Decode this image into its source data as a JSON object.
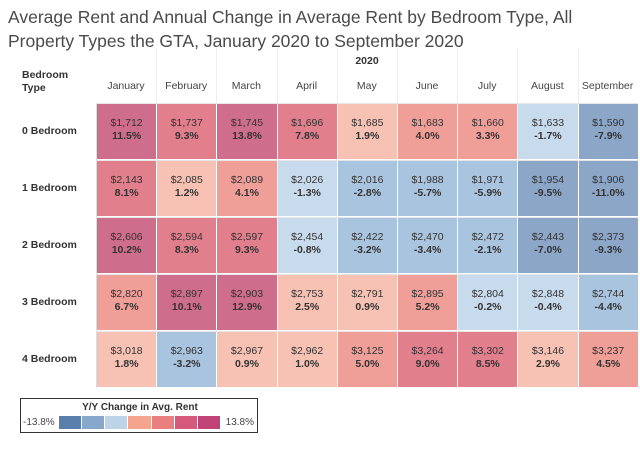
{
  "chart_data": {
    "type": "heatmap",
    "title": "Average Rent and Annual Change in Average Rent by Bedroom Type, All Property Types the GTA, January 2020 to September 2020",
    "year_label": "2020",
    "row_header": "Bedroom Type",
    "columns": [
      "January",
      "February",
      "March",
      "April",
      "May",
      "June",
      "July",
      "August",
      "September"
    ],
    "rows": [
      {
        "label": "0 Bedroom",
        "rents": [
          "$1,712",
          "$1,737",
          "$1,745",
          "$1,696",
          "$1,685",
          "$1,683",
          "$1,660",
          "$1,633",
          "$1,590"
        ],
        "changes": [
          "11.5%",
          "9.3%",
          "13.8%",
          "7.8%",
          "1.9%",
          "4.0%",
          "3.3%",
          "-1.7%",
          "-7.9%"
        ],
        "change_values": [
          11.5,
          9.3,
          13.8,
          7.8,
          1.9,
          4.0,
          3.3,
          -1.7,
          -7.9
        ]
      },
      {
        "label": "1 Bedroom",
        "rents": [
          "$2,143",
          "$2,085",
          "$2,089",
          "$2,026",
          "$2,016",
          "$1,988",
          "$1,971",
          "$1,954",
          "$1,906"
        ],
        "changes": [
          "8.1%",
          "1.2%",
          "4.1%",
          "-1.3%",
          "-2.8%",
          "-5.7%",
          "-5.9%",
          "-9.5%",
          "-11.0%"
        ],
        "change_values": [
          8.1,
          1.2,
          4.1,
          -1.3,
          -2.8,
          -5.7,
          -5.9,
          -9.5,
          -11.0
        ]
      },
      {
        "label": "2 Bedroom",
        "rents": [
          "$2,606",
          "$2,594",
          "$2,597",
          "$2,454",
          "$2,422",
          "$2,470",
          "$2,472",
          "$2,443",
          "$2,373"
        ],
        "changes": [
          "10.2%",
          "8.3%",
          "9.3%",
          "-0.8%",
          "-3.2%",
          "-3.4%",
          "-2.1%",
          "-7.0%",
          "-9.3%"
        ],
        "change_values": [
          10.2,
          8.3,
          9.3,
          -0.8,
          -3.2,
          -3.4,
          -2.1,
          -7.0,
          -9.3
        ]
      },
      {
        "label": "3 Bedroom",
        "rents": [
          "$2,820",
          "$2,897",
          "$2,903",
          "$2,753",
          "$2,791",
          "$2,895",
          "$2,804",
          "$2,848",
          "$2,744"
        ],
        "changes": [
          "6.7%",
          "10.1%",
          "12.9%",
          "2.5%",
          "0.9%",
          "5.2%",
          "-0.2%",
          "-0.4%",
          "-4.4%"
        ],
        "change_values": [
          6.7,
          10.1,
          12.9,
          2.5,
          0.9,
          5.2,
          -0.2,
          -0.4,
          -4.4
        ]
      },
      {
        "label": "4 Bedroom",
        "rents": [
          "$3,018",
          "$2,963",
          "$2,967",
          "$2,962",
          "$3,125",
          "$3,264",
          "$3,302",
          "$3,146",
          "$3,237"
        ],
        "changes": [
          "1.8%",
          "-3.2%",
          "0.9%",
          "1.0%",
          "5.0%",
          "9.0%",
          "8.5%",
          "2.9%",
          "4.5%"
        ],
        "change_values": [
          1.8,
          -3.2,
          0.9,
          1.0,
          5.0,
          9.0,
          8.5,
          2.9,
          4.5
        ]
      }
    ],
    "legend": {
      "title": "Y/Y Change in Avg. Rent",
      "min_label": "-13.8%",
      "max_label": "13.8%",
      "range": [
        -13.8,
        13.8
      ],
      "steps": [
        "#5b7fac",
        "#87a7cc",
        "#bcd3e8",
        "#f5a58e",
        "#ea7f80",
        "#d6587a",
        "#c14274"
      ]
    },
    "colors": {
      "neg_strong": "#8ca6c8",
      "neg_mid": "#a9c4de",
      "neg_light": "#c8dbec",
      "pos_light": "#f7c1b3",
      "pos_mid": "#ef9f98",
      "pos_strong": "#e27f8d",
      "pos_max": "#cf6d8c"
    }
  }
}
